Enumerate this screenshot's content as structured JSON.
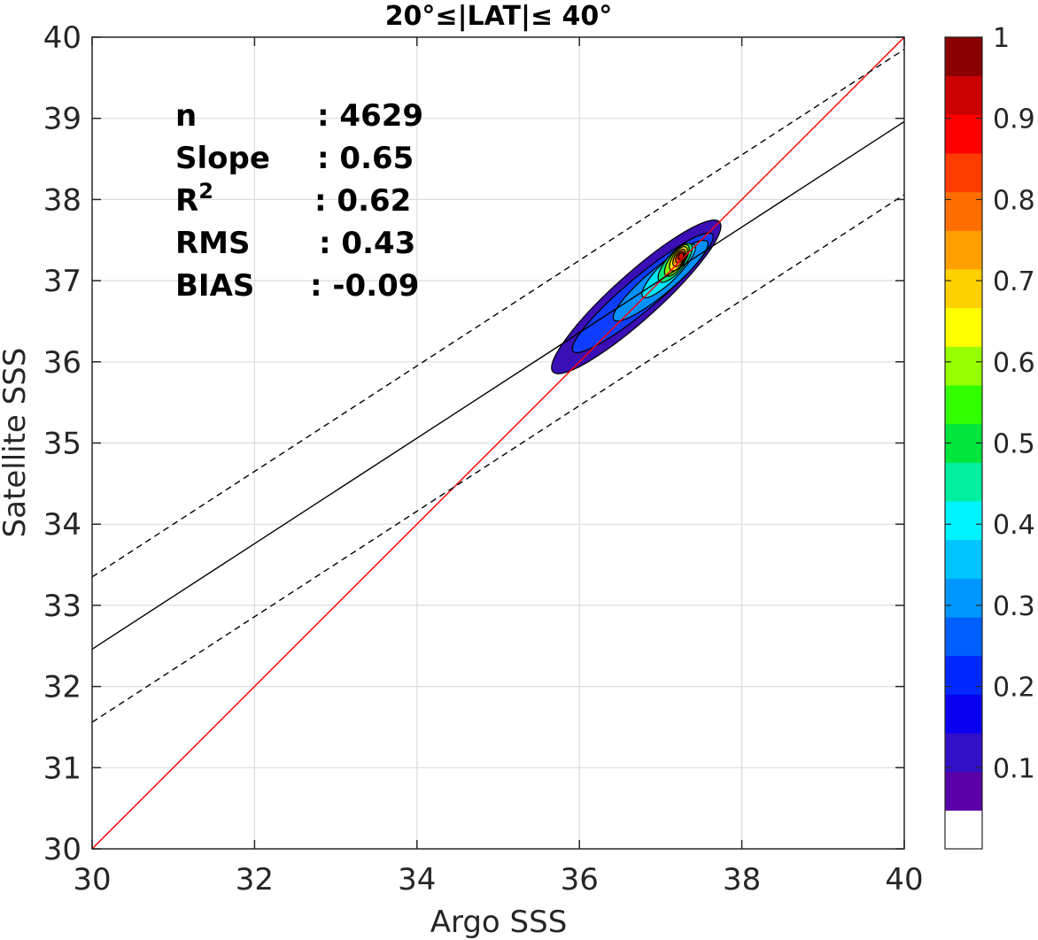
{
  "chart_data": {
    "type": "contour",
    "title": "20°≤|LAT|≤ 40°",
    "xlabel": "Argo SSS",
    "ylabel": "Satellite SSS",
    "xlim": [
      30,
      40
    ],
    "ylim": [
      30,
      40
    ],
    "xticks": [
      "30",
      "32",
      "34",
      "36",
      "38",
      "40"
    ],
    "yticks": [
      "30",
      "31",
      "32",
      "33",
      "34",
      "35",
      "36",
      "37",
      "38",
      "39",
      "40"
    ],
    "grid": true,
    "stats": [
      {
        "label": "n",
        "value": ": 4629"
      },
      {
        "label": "Slope",
        "value": ": 0.65"
      },
      {
        "label": "R",
        "sup": "2",
        "value": ": 0.62"
      },
      {
        "label": "RMS",
        "value": ": 0.43"
      },
      {
        "label": "BIAS",
        "value": ": -0.09"
      }
    ],
    "lines": {
      "identity": {
        "color": "#ff0000",
        "points": [
          [
            30,
            30
          ],
          [
            40,
            40
          ]
        ]
      },
      "fit": {
        "color": "#000000",
        "points": [
          [
            30,
            32.46
          ],
          [
            40,
            38.96
          ]
        ]
      },
      "fit_upper": {
        "color": "#000000",
        "dashed": true,
        "points": [
          [
            30,
            33.35
          ],
          [
            40,
            39.85
          ]
        ]
      },
      "fit_lower": {
        "color": "#000000",
        "dashed": true,
        "points": [
          [
            30,
            31.56
          ],
          [
            40,
            38.06
          ]
        ]
      }
    },
    "density": {
      "peak": [
        37.25,
        37.3
      ],
      "levels": [
        {
          "level": 0.05,
          "color": "#3a0fb5",
          "center": [
            36.7,
            36.8
          ],
          "rx": 1.38,
          "ry": 0.28,
          "angle": 42
        },
        {
          "level": 0.15,
          "color": "#0f3dff",
          "center": [
            36.78,
            36.85
          ],
          "rx": 1.12,
          "ry": 0.2,
          "angle": 40
        },
        {
          "level": 0.25,
          "color": "#0090ff",
          "center": [
            37.0,
            37.0
          ],
          "rx": 0.75,
          "ry": 0.16,
          "angle": 40
        },
        {
          "level": 0.35,
          "color": "#00e6ff",
          "center": [
            37.1,
            37.12
          ],
          "rx": 0.45,
          "ry": 0.12,
          "angle": 45
        },
        {
          "level": 0.45,
          "color": "#00e878",
          "center": [
            37.18,
            37.22
          ],
          "rx": 0.3,
          "ry": 0.11,
          "angle": 50
        },
        {
          "level": 0.55,
          "color": "#8cf000",
          "center": [
            37.2,
            37.25
          ],
          "rx": 0.23,
          "ry": 0.09,
          "angle": 55
        },
        {
          "level": 0.65,
          "color": "#ffe800",
          "center": [
            37.22,
            37.27
          ],
          "rx": 0.17,
          "ry": 0.075,
          "angle": 58
        },
        {
          "level": 0.75,
          "color": "#ff9f00",
          "center": [
            37.23,
            37.28
          ],
          "rx": 0.12,
          "ry": 0.06,
          "angle": 60
        },
        {
          "level": 0.85,
          "color": "#ff3c00",
          "center": [
            37.24,
            37.29
          ],
          "rx": 0.08,
          "ry": 0.045,
          "angle": 60
        },
        {
          "level": 0.95,
          "color": "#dd0000",
          "center": [
            37.25,
            37.3
          ],
          "rx": 0.045,
          "ry": 0.03,
          "angle": 60
        }
      ]
    },
    "colorbar": {
      "ticks": [
        "0.1",
        "0.2",
        "0.3",
        "0.4",
        "0.5",
        "0.6",
        "0.7",
        "0.8",
        "0.9",
        "1"
      ],
      "colors": [
        "#ffffff",
        "#5a00a8",
        "#3110c8",
        "#0a00f2",
        "#0028ff",
        "#0060ff",
        "#0096ff",
        "#00c4ff",
        "#00f4ff",
        "#00f0a0",
        "#00e63c",
        "#32ff00",
        "#96ff00",
        "#ffff00",
        "#ffd000",
        "#ff9f00",
        "#ff6e00",
        "#ff3c00",
        "#ff0000",
        "#cc0000",
        "#8a0000"
      ]
    }
  }
}
